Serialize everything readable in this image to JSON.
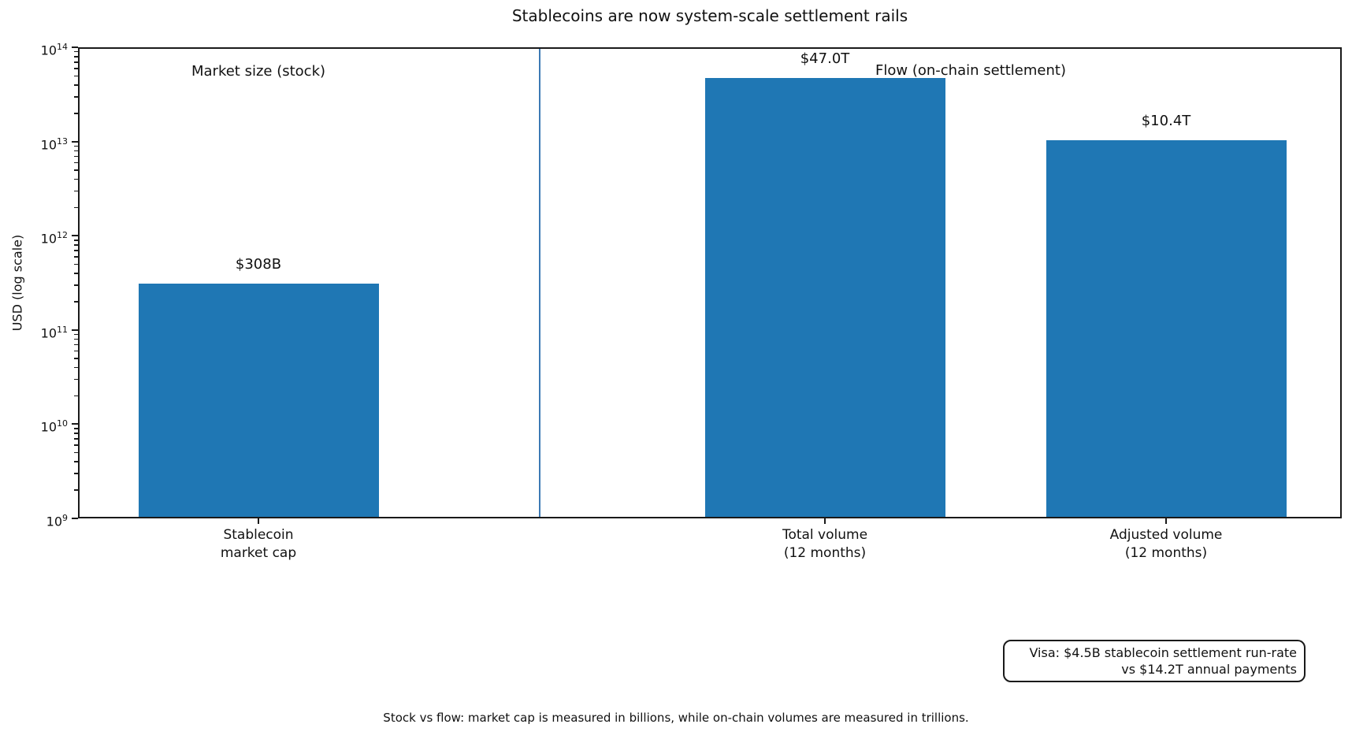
{
  "chart_data": {
    "type": "bar",
    "title": "Stablecoins are now system-scale settlement rails",
    "ylabel": "USD (log scale)",
    "yscale": "log",
    "ylim": [
      1000000000,
      100000000000000
    ],
    "y_tick_exponents": [
      9,
      10,
      11,
      12,
      13,
      14
    ],
    "categories": [
      "Stablecoin\nmarket cap",
      "Total volume\n(12 months)",
      "Adjusted volume\n(12 months)"
    ],
    "values": [
      308000000000,
      47000000000000,
      10400000000000
    ],
    "bar_value_labels": [
      "$308B",
      "$47.0T",
      "$10.4T"
    ],
    "bar_color": "#1f77b4",
    "grid": false,
    "legend": "none",
    "group_annotations": [
      {
        "text": "Market size (stock)"
      },
      {
        "text": "Flow (on-chain settlement)"
      }
    ],
    "note_box": "Visa: $4.5B stablecoin settlement run-rate\nvs $14.2T annual payments",
    "caption": "Stock vs flow: market cap is measured in billions, while on-chain volumes are measured in trillions."
  }
}
